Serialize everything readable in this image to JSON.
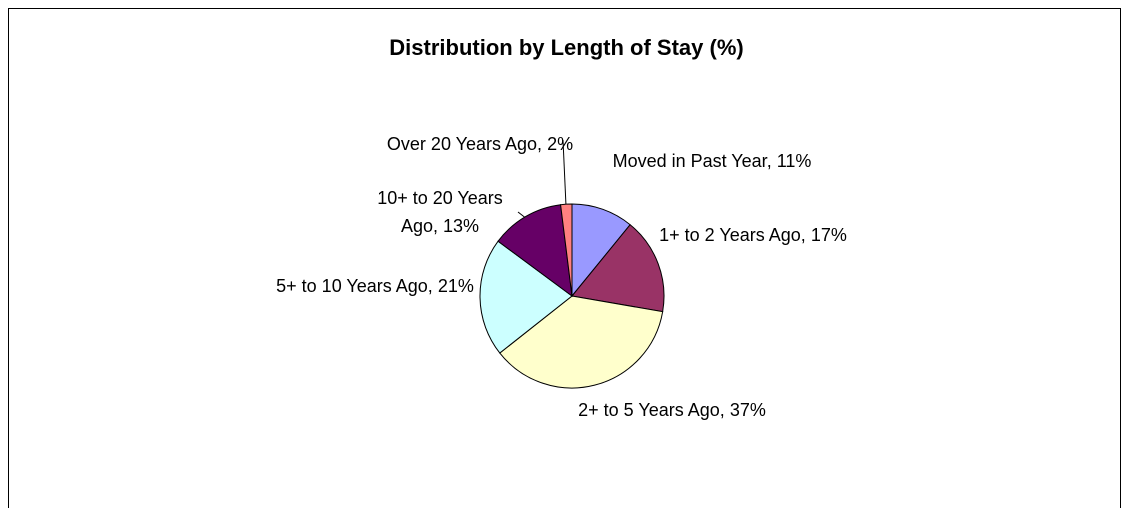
{
  "chart_data": {
    "type": "pie",
    "title": "Distribution by Length of Stay (%)",
    "categories": [
      "Moved in Past Year",
      "1+ to 2 Years Ago",
      "2+ to 5 Years Ago",
      "5+ to 10 Years Ago",
      "10+ to 20 Years Ago",
      "Over 20 Years Ago"
    ],
    "values": [
      11,
      17,
      37,
      21,
      13,
      2
    ],
    "value_labels": [
      "11%",
      "17%",
      "37%",
      "21%",
      "13%",
      "2%"
    ],
    "separator": ",",
    "colors": [
      "#9999ff",
      "#993366",
      "#ffffcc",
      "#ccffff",
      "#660066",
      "#ff8080"
    ]
  }
}
